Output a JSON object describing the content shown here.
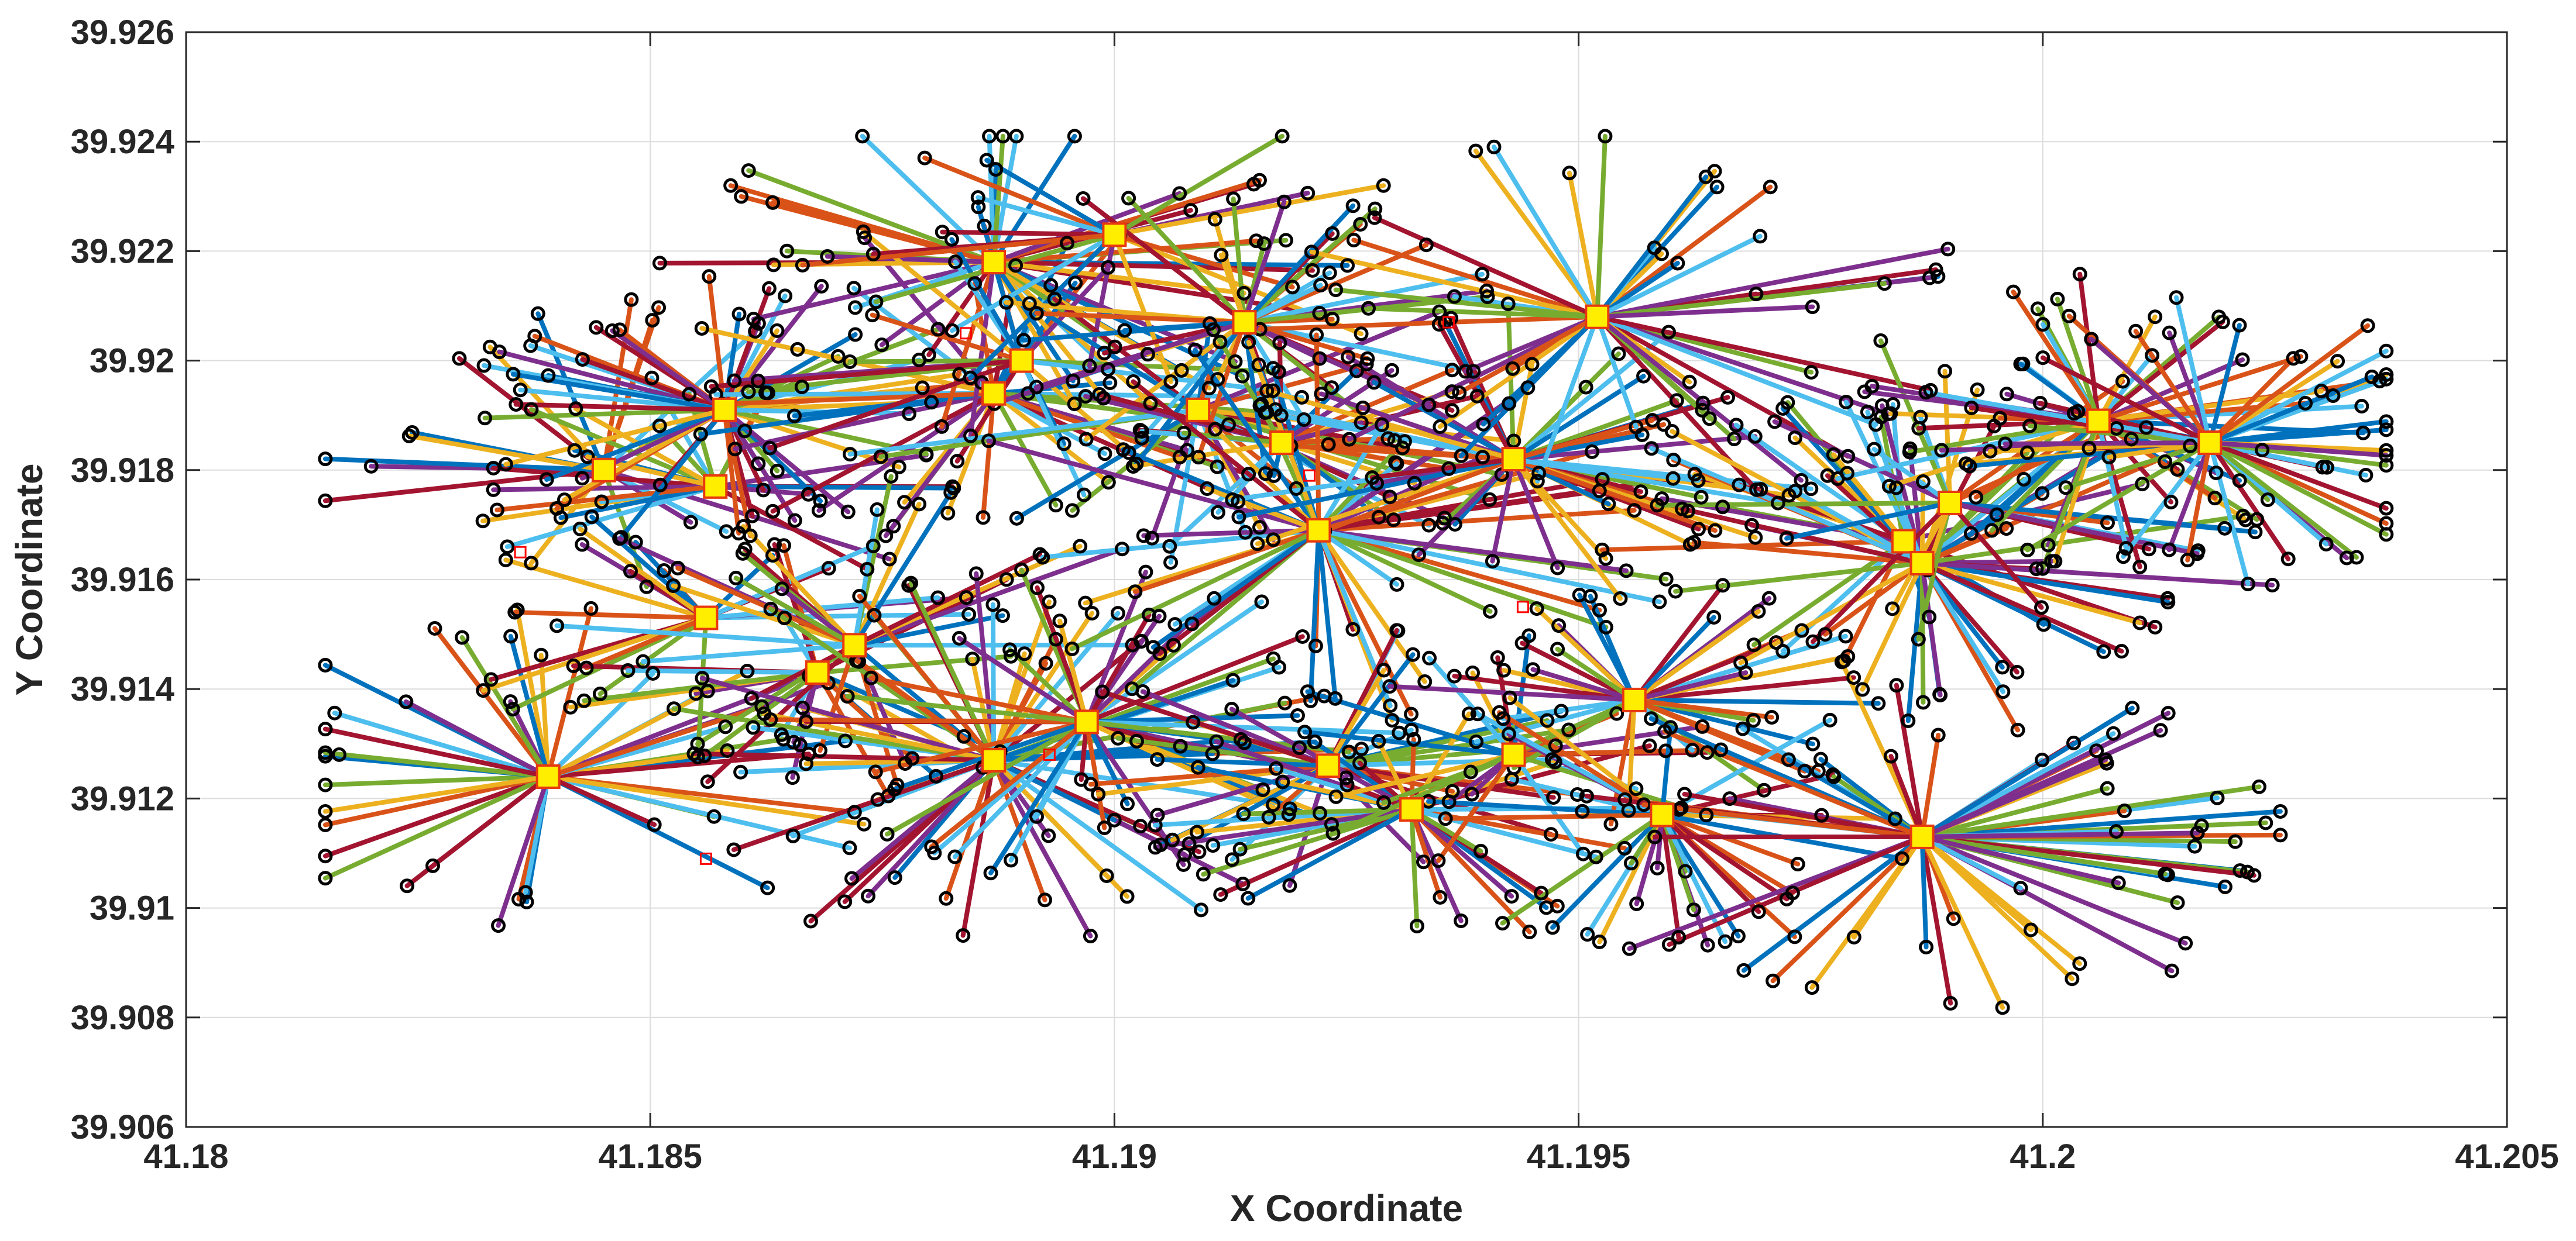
{
  "chart_data": {
    "type": "scatter",
    "xlabel": "X Coordinate",
    "ylabel": "Y Coordinate",
    "xlim": [
      41.18,
      41.205
    ],
    "ylim": [
      39.906,
      39.926
    ],
    "xticks": [
      "41.18",
      "41.185",
      "41.19",
      "41.195",
      "41.2",
      "41.205"
    ],
    "yticks": [
      "39.906",
      "39.908",
      "39.91",
      "39.912",
      "39.914",
      "39.916",
      "39.918",
      "39.92",
      "39.922",
      "39.924",
      "39.926"
    ],
    "xtick_values": [
      41.18,
      41.185,
      41.19,
      41.195,
      41.2,
      41.205
    ],
    "ytick_values": [
      39.906,
      39.908,
      39.91,
      39.912,
      39.914,
      39.916,
      39.918,
      39.92,
      39.922,
      39.924,
      39.926
    ],
    "grid": true,
    "legend": "none",
    "series": [
      {
        "role": "hubs",
        "marker": "filled-square",
        "color": "#ffee00",
        "edge_color": "#e8390e"
      },
      {
        "role": "customers",
        "marker": "open-circle",
        "color": "#000000"
      },
      {
        "role": "unassigned",
        "marker": "open-square",
        "color": "#ff0000"
      }
    ],
    "line_colors": [
      "#0072bd",
      "#d95319",
      "#edb120",
      "#7e2f8e",
      "#77ac30",
      "#4dbeee",
      "#a2142f"
    ],
    "hubs": [
      [
        41.1839,
        39.9124
      ],
      [
        41.1845,
        39.918
      ],
      [
        41.1857,
        39.9177
      ],
      [
        41.1858,
        39.9191
      ],
      [
        41.1856,
        39.9153
      ],
      [
        41.1868,
        39.9143
      ],
      [
        41.1872,
        39.9148
      ],
      [
        41.1887,
        39.9194
      ],
      [
        41.1887,
        39.9218
      ],
      [
        41.189,
        39.92
      ],
      [
        41.1887,
        39.9127
      ],
      [
        41.1897,
        39.9134
      ],
      [
        41.19,
        39.9223
      ],
      [
        41.1909,
        39.9191
      ],
      [
        41.1914,
        39.9207
      ],
      [
        41.1918,
        39.9185
      ],
      [
        41.1922,
        39.9169
      ],
      [
        41.1923,
        39.9126
      ],
      [
        41.1932,
        39.9118
      ],
      [
        41.1943,
        39.9182
      ],
      [
        41.1943,
        39.9128
      ],
      [
        41.1952,
        39.9208
      ],
      [
        41.1956,
        39.9138
      ],
      [
        41.1959,
        39.9117
      ],
      [
        41.1985,
        39.9167
      ],
      [
        41.1987,
        39.9163
      ],
      [
        41.1987,
        39.9113
      ],
      [
        41.199,
        39.9174
      ],
      [
        41.2006,
        39.9189
      ],
      [
        41.2018,
        39.9185
      ]
    ],
    "cluster_sizes": [
      42,
      18,
      22,
      48,
      20,
      20,
      26,
      34,
      40,
      18,
      58,
      40,
      16,
      24,
      42,
      22,
      48,
      30,
      34,
      52,
      20,
      46,
      34,
      32,
      20,
      46,
      62,
      20,
      48,
      46
    ],
    "unassigned": [
      [
        41.1836,
        39.9165
      ],
      [
        41.1856,
        39.9109
      ],
      [
        41.1884,
        39.9205
      ],
      [
        41.1893,
        39.9128
      ],
      [
        41.1921,
        39.9179
      ],
      [
        41.1936,
        39.9207
      ],
      [
        41.1944,
        39.9155
      ]
    ]
  }
}
